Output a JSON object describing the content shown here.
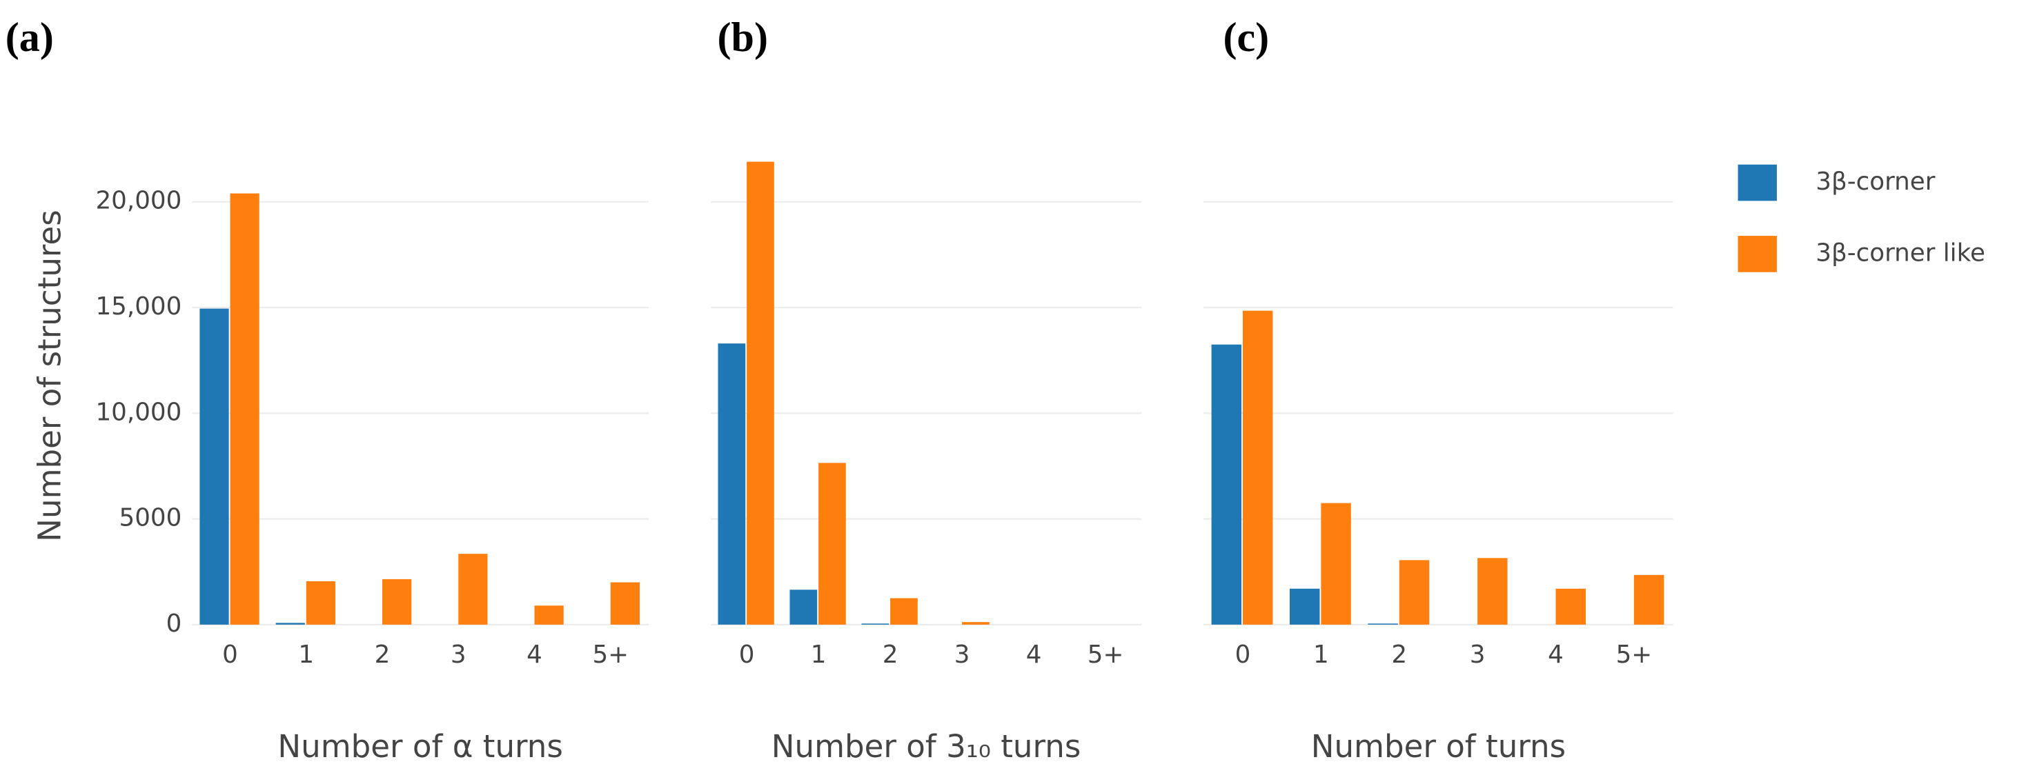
{
  "chart_data": [
    {
      "type": "bar",
      "panel_label": "(a)",
      "x_label": "Number of α turns",
      "y_label": "Number of structures",
      "categories": [
        "0",
        "1",
        "2",
        "3",
        "4",
        "5+"
      ],
      "series": [
        {
          "name": "3β-corner",
          "color": "#1f77b4",
          "values": [
            14950,
            80,
            0,
            0,
            0,
            0
          ]
        },
        {
          "name": "3β-corner like",
          "color": "#ff7f0e",
          "values": [
            20400,
            2050,
            2150,
            3350,
            900,
            2000
          ]
        }
      ],
      "ylim": [
        0,
        22500
      ],
      "yticks": [
        0,
        5000,
        {
          "value": 10000,
          "label": "10,000"
        },
        {
          "value": 15000,
          "label": "15,000"
        },
        {
          "value": 20000,
          "label": "20,000"
        }
      ],
      "grid": true,
      "legend": "right"
    },
    {
      "type": "bar",
      "panel_label": "(b)",
      "x_label": "Number of 3₁₀ turns",
      "categories": [
        "0",
        "1",
        "2",
        "3",
        "4",
        "5+"
      ],
      "series": [
        {
          "name": "3β-corner",
          "color": "#1f77b4",
          "values": [
            13300,
            1650,
            50,
            0,
            0,
            0
          ]
        },
        {
          "name": "3β-corner like",
          "color": "#ff7f0e",
          "values": [
            21900,
            7650,
            1250,
            120,
            0,
            0
          ]
        }
      ],
      "ylim": [
        0,
        22500
      ],
      "yticks": [
        0,
        5000,
        10000,
        15000,
        20000
      ],
      "ytick_labels": false,
      "grid": true,
      "legend": false
    },
    {
      "type": "bar",
      "panel_label": "(c)",
      "x_label": "Number of turns",
      "categories": [
        "0",
        "1",
        "2",
        "3",
        "4",
        "5+"
      ],
      "series": [
        {
          "name": "3β-corner",
          "color": "#1f77b4",
          "values": [
            13250,
            1700,
            50,
            0,
            0,
            0
          ]
        },
        {
          "name": "3β-corner like",
          "color": "#ff7f0e",
          "values": [
            14850,
            5750,
            3050,
            3150,
            1700,
            2350
          ]
        }
      ],
      "ylim": [
        0,
        22500
      ],
      "yticks": [
        0,
        5000,
        10000,
        15000,
        20000
      ],
      "ytick_labels": false,
      "grid": true,
      "legend": false
    }
  ]
}
